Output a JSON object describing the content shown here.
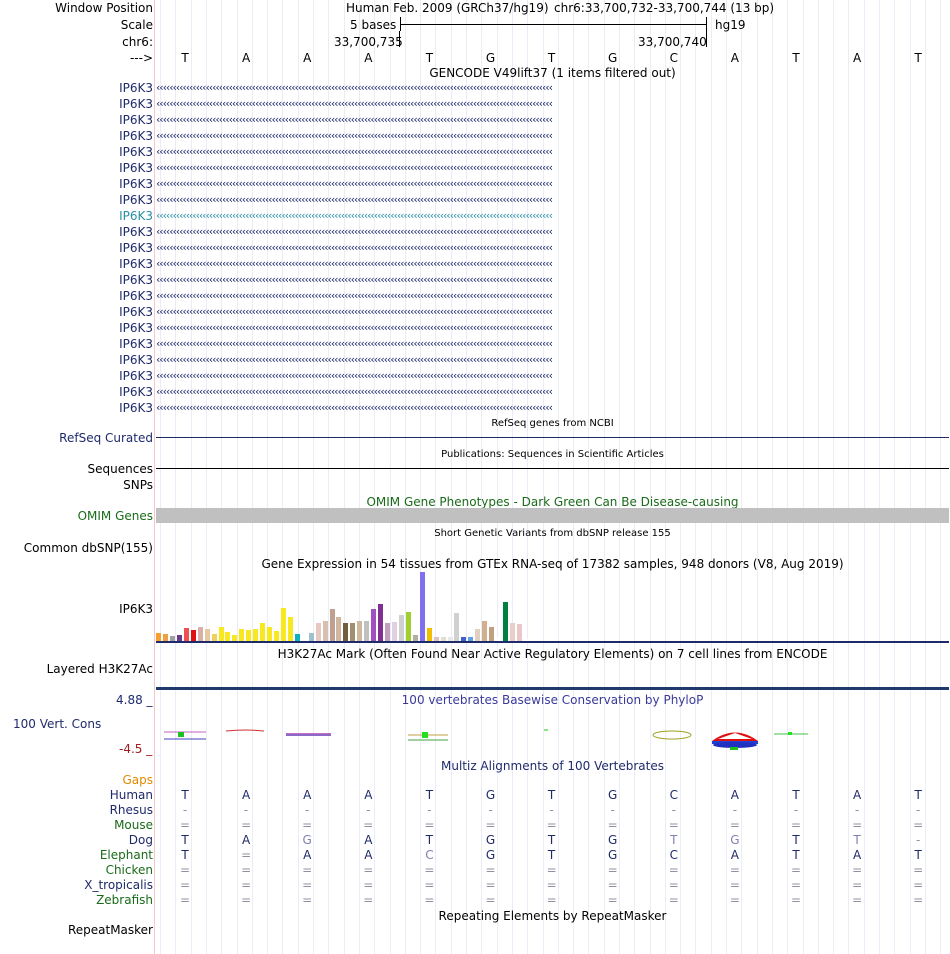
{
  "header": {
    "window_position_label": "Window Position",
    "scale_label": "Scale",
    "chrom_label": "chr6:",
    "strand_label": "--->",
    "assembly": "Human Feb. 2009 (GRCh37/hg19)",
    "position": "chr6:33,700,732-33,700,744 (13 bp)",
    "scale_text": "5 bases",
    "db": "hg19",
    "coord_left": "33,700,735",
    "coord_right": "33,700,740"
  },
  "sequence": [
    "T",
    "A",
    "A",
    "A",
    "T",
    "G",
    "T",
    "G",
    "C",
    "A",
    "T",
    "A",
    "T"
  ],
  "gencode": {
    "title": "GENCODE V49lift37 (1 items filtered out)",
    "items": [
      "IP6K3",
      "IP6K3",
      "IP6K3",
      "IP6K3",
      "IP6K3",
      "IP6K3",
      "IP6K3",
      "IP6K3",
      "IP6K3",
      "IP6K3",
      "IP6K3",
      "IP6K3",
      "IP6K3",
      "IP6K3",
      "IP6K3",
      "IP6K3",
      "IP6K3",
      "IP6K3",
      "IP6K3",
      "IP6K3",
      "IP6K3"
    ],
    "highlight_index": 8
  },
  "refseq": {
    "title": "RefSeq genes from NCBI",
    "label": "RefSeq Curated"
  },
  "pubs": {
    "title": "Publications: Sequences in Scientific Articles",
    "label": "Sequences"
  },
  "snps": {
    "label": "SNPs"
  },
  "omim": {
    "title": "OMIM Gene Phenotypes - Dark Green Can Be Disease-causing",
    "label": "OMIM Genes"
  },
  "dbsnp": {
    "title": "Short Genetic Variants from dbSNP release 155",
    "label": "Common dbSNP(155)"
  },
  "gtex": {
    "title": "Gene Expression in 54 tissues from GTEx RNA-seq of 17382 samples, 948 donors (V8, Aug 2019)",
    "label": "IP6K3",
    "bars": [
      {
        "v": 8,
        "c": "#f5a030"
      },
      {
        "v": 7,
        "c": "#f0a040"
      },
      {
        "v": 5,
        "c": "#a0a0a0"
      },
      {
        "v": 6,
        "c": "#6a3a8a"
      },
      {
        "v": 13,
        "c": "#f05050"
      },
      {
        "v": 11,
        "c": "#e01010"
      },
      {
        "v": 14,
        "c": "#d8b0a8"
      },
      {
        "v": 12,
        "c": "#e8c8a0"
      },
      {
        "v": 7,
        "c": "#f0d060"
      },
      {
        "v": 14,
        "c": "#f8e820"
      },
      {
        "v": 9,
        "c": "#f8e820"
      },
      {
        "v": 6,
        "c": "#f8e820"
      },
      {
        "v": 12,
        "c": "#f8e820"
      },
      {
        "v": 11,
        "c": "#f8e820"
      },
      {
        "v": 12,
        "c": "#f8e820"
      },
      {
        "v": 18,
        "c": "#f8e820"
      },
      {
        "v": 14,
        "c": "#f8e820"
      },
      {
        "v": 10,
        "c": "#f8e820"
      },
      {
        "v": 33,
        "c": "#f8e820"
      },
      {
        "v": 24,
        "c": "#f8e820"
      },
      {
        "v": 7,
        "c": "#10b0c0"
      },
      {
        "v": 2,
        "c": "#ffffff"
      },
      {
        "v": 8,
        "c": "#a0c0d0"
      },
      {
        "v": 18,
        "c": "#e8c8c0"
      },
      {
        "v": 20,
        "c": "#d8c0b0"
      },
      {
        "v": 32,
        "c": "#c0a090"
      },
      {
        "v": 24,
        "c": "#d0b8a0"
      },
      {
        "v": 18,
        "c": "#706040"
      },
      {
        "v": 18,
        "c": "#a09070"
      },
      {
        "v": 20,
        "c": "#d0b8a0"
      },
      {
        "v": 20,
        "c": "#c0c0c0"
      },
      {
        "v": 32,
        "c": "#a050c0"
      },
      {
        "v": 36,
        "c": "#803090"
      },
      {
        "v": 18,
        "c": "#c0a0c0"
      },
      {
        "v": 19,
        "c": "#e0d0e0"
      },
      {
        "v": 26,
        "c": "#d0d0d0"
      },
      {
        "v": 29,
        "c": "#a0d030"
      },
      {
        "v": 6,
        "c": "#b0b0a0"
      },
      {
        "v": 68,
        "c": "#8070f0"
      },
      {
        "v": 13,
        "c": "#f0c000"
      },
      {
        "v": 4,
        "c": "#e0c0c0"
      },
      {
        "v": 4,
        "c": "#e0e0d0"
      },
      {
        "v": 4,
        "c": "#e8e8e8"
      },
      {
        "v": 28,
        "c": "#d0d0d0"
      },
      {
        "v": 4,
        "c": "#4060d0"
      },
      {
        "v": 4,
        "c": "#60a0e0"
      },
      {
        "v": 12,
        "c": "#e0d0c0"
      },
      {
        "v": 20,
        "c": "#d0b090"
      },
      {
        "v": 14,
        "c": "#c0a080"
      },
      {
        "v": 4,
        "c": "#ffffff"
      },
      {
        "v": 38,
        "c": "#008040"
      },
      {
        "v": 18,
        "c": "#e8d0c8"
      },
      {
        "v": 17,
        "c": "#e8c8c8"
      },
      {
        "v": 2,
        "c": "#ffffff"
      }
    ]
  },
  "h3k27ac": {
    "title": "H3K27Ac Mark (Often Found Near Active Regulatory Elements) on 7 cell lines from ENCODE",
    "label": "Layered H3K27Ac"
  },
  "phylop": {
    "title": "100 vertebrates Basewise Conservation by PhyloP",
    "label": "100 Vert. Cons",
    "max_label": "4.88 _",
    "min_label": "-4.5 _"
  },
  "multiz": {
    "title": "Multiz Alignments of 100 Vertebrates",
    "gaps_label": "Gaps",
    "species": [
      {
        "name": "Human",
        "color": "#1f2a6b",
        "bases": [
          "T",
          "A",
          "A",
          "A",
          "T",
          "G",
          "T",
          "G",
          "C",
          "A",
          "T",
          "A",
          "T"
        ]
      },
      {
        "name": "Rhesus",
        "color": "#1f2a6b",
        "bases": [
          "-",
          "-",
          "-",
          "-",
          "-",
          "-",
          "-",
          "-",
          "-",
          "-",
          "-",
          "-",
          "-"
        ]
      },
      {
        "name": "Mouse",
        "color": "#196b19",
        "bases": [
          "=",
          "=",
          "=",
          "=",
          "=",
          "=",
          "=",
          "=",
          "=",
          "=",
          "=",
          "=",
          "="
        ]
      },
      {
        "name": "Dog",
        "color": "#1f2a6b",
        "bases": [
          "T",
          "A",
          "G",
          "A",
          "T",
          "G",
          "T",
          "G",
          "T",
          "G",
          "T",
          "T",
          "-"
        ]
      },
      {
        "name": "Elephant",
        "color": "#196b19",
        "bases": [
          "T",
          "=",
          "A",
          "A",
          "C",
          "G",
          "T",
          "G",
          "C",
          "A",
          "T",
          "A",
          "T"
        ]
      },
      {
        "name": "Chicken",
        "color": "#196b19",
        "bases": [
          "=",
          "=",
          "=",
          "=",
          "=",
          "=",
          "=",
          "=",
          "=",
          "=",
          "=",
          "=",
          "="
        ]
      },
      {
        "name": "X_tropicalis",
        "color": "#1f2a6b",
        "bases": [
          "=",
          "=",
          "=",
          "=",
          "=",
          "=",
          "=",
          "=",
          "=",
          "=",
          "=",
          "=",
          "="
        ]
      },
      {
        "name": "Zebrafish",
        "color": "#196b19",
        "bases": [
          "=",
          "=",
          "=",
          "=",
          "=",
          "=",
          "=",
          "=",
          "=",
          "=",
          "=",
          "=",
          "="
        ]
      }
    ]
  },
  "repeatmasker": {
    "title": "Repeating Elements by RepeatMasker",
    "label": "RepeatMasker"
  }
}
